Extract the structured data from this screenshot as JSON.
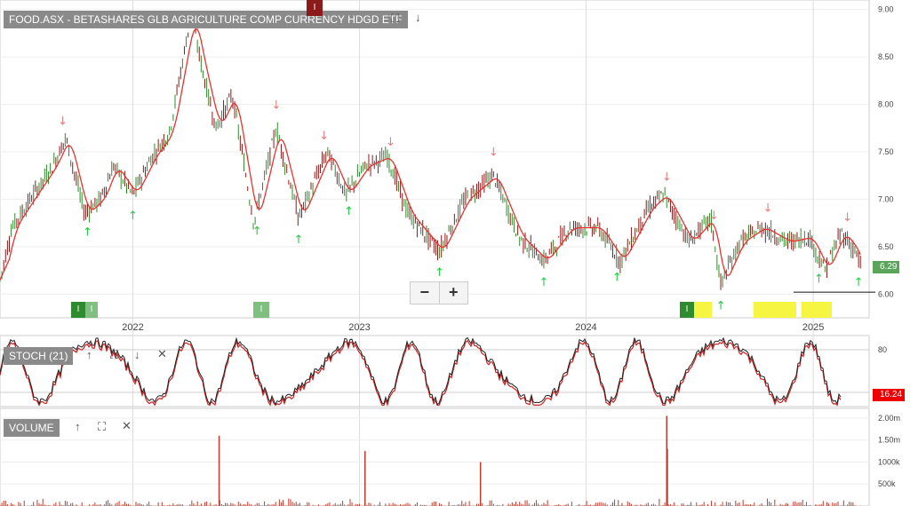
{
  "header": {
    "title": "FOOD.ASX - BETASHARES GLB AGRICULTURE COMP CURRENCY HDGD ETF",
    "marker_label": "I",
    "expand_icon": "expand-icon",
    "down_icon": "arrow-down-icon"
  },
  "price_panel": {
    "y_ticks": [
      "9.00",
      "8.50",
      "8.00",
      "7.50",
      "7.00",
      "6.50",
      "6.00"
    ],
    "last_price": "6.29",
    "zoom_out": "−",
    "zoom_in": "+",
    "event_badges": [
      "I",
      "I",
      "I",
      "I"
    ]
  },
  "x_axis": {
    "years": [
      "2022",
      "2023",
      "2024",
      "2025"
    ]
  },
  "stoch_panel": {
    "title": "STOCH (21)",
    "y_ticks": [
      "80"
    ],
    "last_value": "16.24",
    "up_icon": "arrow-up-icon",
    "expand_icon": "expand-icon",
    "down_icon": "arrow-down-icon",
    "close_icon": "close-icon"
  },
  "volume_panel": {
    "title": "VOLUME",
    "y_ticks": [
      "2.00m",
      "1.50m",
      "1000k",
      "500k"
    ],
    "up_icon": "arrow-up-icon",
    "expand_icon": "expand-icon",
    "close_icon": "close-icon"
  },
  "colors": {
    "up": "#2e8b2e",
    "down": "#8b1a1a",
    "ma": "#e8322d",
    "stoch": "#222222",
    "stoch_signal": "#cc2222",
    "volume": "#c0392b",
    "buy_arrow": "#22cc44",
    "sell_arrow": "#e87a7a",
    "badge_green": "#2e8b2e",
    "badge_yellow": "#f5f542"
  },
  "chart_data": {
    "type": "line",
    "price_ylim": [
      5.75,
      9.1
    ],
    "price_anchors": [
      [
        "2021-06-01",
        6.15
      ],
      [
        "2021-06-20",
        6.7
      ],
      [
        "2021-07-20",
        7.0
      ],
      [
        "2021-08-25",
        7.35
      ],
      [
        "2021-09-15",
        7.65
      ],
      [
        "2021-10-15",
        6.85
      ],
      [
        "2021-11-10",
        7.0
      ],
      [
        "2021-12-01",
        7.35
      ],
      [
        "2022-01-01",
        7.05
      ],
      [
        "2022-02-01",
        7.45
      ],
      [
        "2022-03-01",
        7.7
      ],
      [
        "2022-04-05",
        8.95
      ],
      [
        "2022-04-25",
        8.3
      ],
      [
        "2022-05-15",
        7.75
      ],
      [
        "2022-06-10",
        8.1
      ],
      [
        "2022-07-15",
        6.75
      ],
      [
        "2022-08-20",
        7.75
      ],
      [
        "2022-09-25",
        6.8
      ],
      [
        "2022-11-10",
        7.5
      ],
      [
        "2022-12-10",
        7.05
      ],
      [
        "2023-01-10",
        7.35
      ],
      [
        "2023-02-15",
        7.45
      ],
      [
        "2023-03-20",
        6.85
      ],
      [
        "2023-05-10",
        6.45
      ],
      [
        "2023-06-20",
        7.0
      ],
      [
        "2023-08-05",
        7.25
      ],
      [
        "2023-09-15",
        6.6
      ],
      [
        "2023-10-25",
        6.35
      ],
      [
        "2023-12-05",
        6.7
      ],
      [
        "2024-01-20",
        6.7
      ],
      [
        "2024-02-25",
        6.35
      ],
      [
        "2024-04-10",
        6.9
      ],
      [
        "2024-05-05",
        7.05
      ],
      [
        "2024-06-15",
        6.55
      ],
      [
        "2024-07-20",
        6.8
      ],
      [
        "2024-08-05",
        6.1
      ],
      [
        "2024-09-05",
        6.55
      ],
      [
        "2024-10-10",
        6.7
      ],
      [
        "2024-11-20",
        6.55
      ],
      [
        "2024-12-25",
        6.6
      ],
      [
        "2025-01-20",
        6.25
      ],
      [
        "2025-02-15",
        6.65
      ],
      [
        "2025-03-10",
        6.45
      ],
      [
        "2025-03-20",
        6.25
      ]
    ],
    "sell_signals": [
      "2021-09-10",
      "2022-08-20",
      "2022-11-05",
      "2023-02-20",
      "2023-08-05",
      "2024-05-10",
      "2024-07-25",
      "2024-10-20",
      "2025-02-25"
    ],
    "buy_signals": [
      "2021-10-20",
      "2022-01-01",
      "2022-07-20",
      "2022-09-25",
      "2022-12-15",
      "2023-05-10",
      "2023-10-25",
      "2024-02-20",
      "2024-08-05",
      "2025-01-10",
      "2025-03-15"
    ],
    "stoch_ylim": [
      0,
      100
    ],
    "volume_ylim": [
      0,
      2.1
    ],
    "volume_spikes": [
      [
        "2022-05-20",
        1.6
      ],
      [
        "2023-01-10",
        1.25
      ],
      [
        "2023-07-15",
        1.0
      ],
      [
        "2024-05-10",
        2.05
      ],
      [
        "2024-05-11",
        1.3
      ]
    ]
  }
}
